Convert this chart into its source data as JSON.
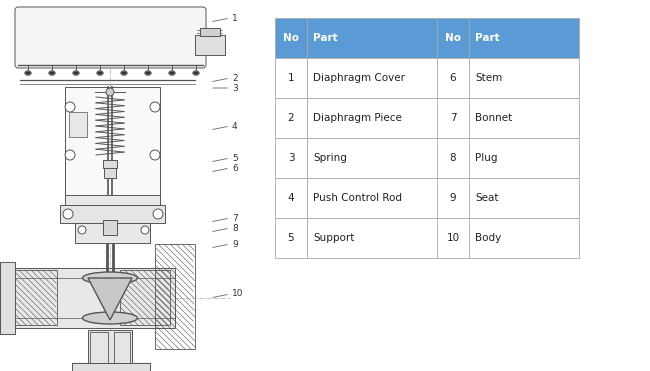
{
  "table_header_bg": "#5b9bd5",
  "table_header_text": "#ffffff",
  "table_row_bg": "#ffffff",
  "table_border": "#aaaaaa",
  "headers": [
    "No",
    "Part",
    "No",
    "Part"
  ],
  "rows": [
    [
      "1",
      "Diaphragm Cover",
      "6",
      "Stem"
    ],
    [
      "2",
      "Diaphragm Piece",
      "7",
      "Bonnet"
    ],
    [
      "3",
      "Spring",
      "8",
      "Plug"
    ],
    [
      "4",
      "Push Control Rod",
      "9",
      "Seat"
    ],
    [
      "5",
      "Support",
      "10",
      "Body"
    ]
  ],
  "label_color": "#333333",
  "diagram_bg": "#ffffff",
  "lc": "#555555",
  "lw": 0.7
}
